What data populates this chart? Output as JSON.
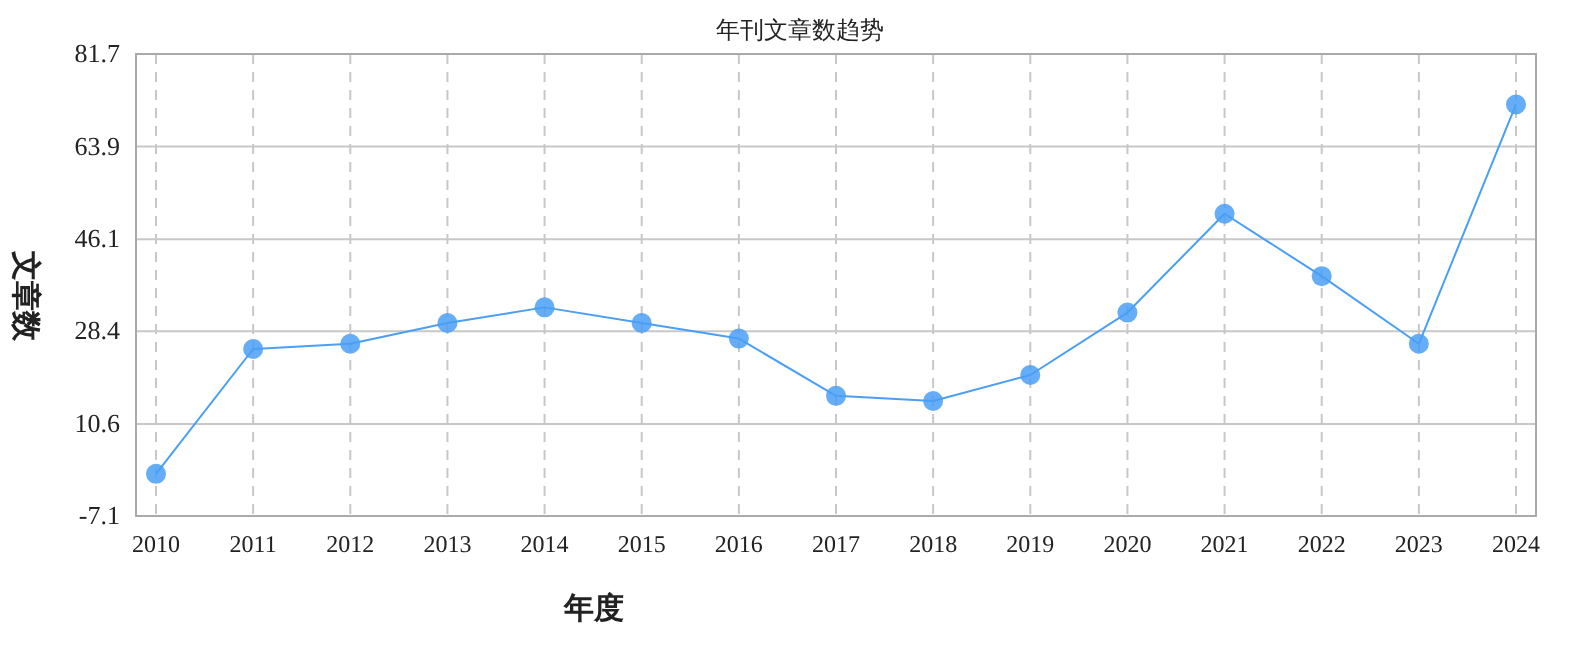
{
  "chart_data": {
    "type": "line",
    "title": "年刊文章数趋势",
    "xlabel": "年度",
    "ylabel": "文章数",
    "categories": [
      "2010",
      "2011",
      "2012",
      "2013",
      "2014",
      "2015",
      "2016",
      "2017",
      "2018",
      "2019",
      "2020",
      "2021",
      "2022",
      "2023",
      "2024"
    ],
    "series": [
      {
        "color": "#4a9ff5",
        "values": [
          1,
          25,
          26,
          30,
          33,
          30,
          27,
          16,
          15,
          20,
          32,
          51,
          39,
          26,
          72
        ]
      }
    ],
    "ylim": [
      -7.1,
      81.7
    ],
    "yticks": [
      -7.1,
      10.6,
      28.4,
      46.1,
      63.9,
      81.7
    ],
    "grid": true,
    "marker": "circle",
    "line_style": "solid"
  }
}
